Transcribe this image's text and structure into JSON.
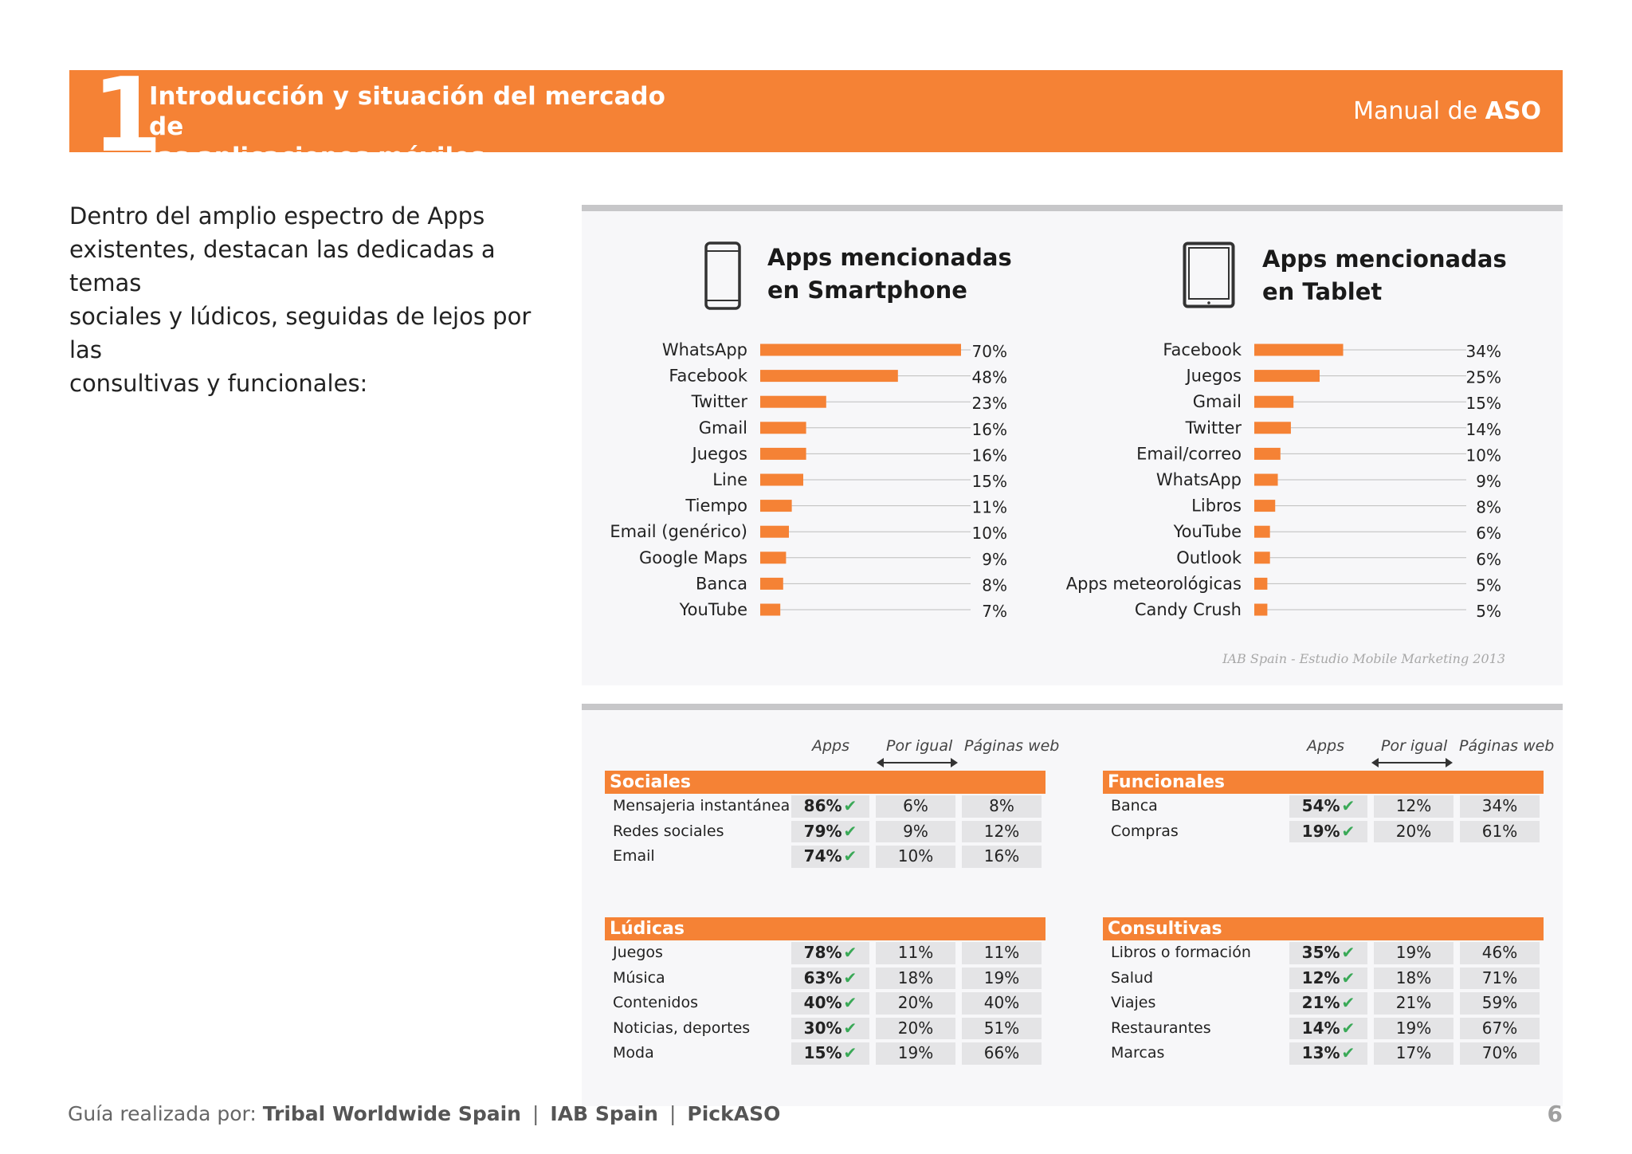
{
  "header": {
    "chapter_number": "1",
    "title_line1": "Introducción y situación del mercado de",
    "title_line2": "las aplicaciones móviles",
    "manual_prefix": "Manual de ",
    "manual_bold": "ASO"
  },
  "intro": {
    "line1": "Dentro del amplio espectro de Apps",
    "line2": "existentes, destacan las dedicadas a temas",
    "line3": "sociales y lúdicos, seguidas de lejos por las",
    "line4": "consultivas y funcionales:"
  },
  "chart_data": [
    {
      "type": "bar",
      "title": "Apps mencionadas en Smartphone",
      "title_line1": "Apps mencionadas",
      "title_line2": "en Smartphone",
      "categories": [
        "WhatsApp",
        "Facebook",
        "Twitter",
        "Gmail",
        "Juegos",
        "Line",
        "Tiempo",
        "Email (genérico)",
        "Google Maps",
        "Banca",
        "YouTube"
      ],
      "values": [
        70,
        48,
        23,
        16,
        16,
        15,
        11,
        10,
        9,
        8,
        7
      ],
      "value_labels": [
        "70%",
        "48%",
        "23%",
        "16%",
        "16%",
        "15%",
        "11%",
        "10%",
        "9%",
        "8%",
        "7%"
      ],
      "orientation": "horizontal",
      "unit": "%",
      "color": "#f58235"
    },
    {
      "type": "bar",
      "title": "Apps mencionadas en Tablet",
      "title_line1": "Apps mencionadas",
      "title_line2": "en Tablet",
      "categories": [
        "Facebook",
        "Juegos",
        "Gmail",
        "Twitter",
        "Email/correo",
        "WhatsApp",
        "Libros",
        "YouTube",
        "Outlook",
        "Apps meteorológicas",
        "Candy Crush"
      ],
      "values": [
        34,
        25,
        15,
        14,
        10,
        9,
        8,
        6,
        6,
        5,
        5
      ],
      "value_labels": [
        "34%",
        "25%",
        "15%",
        "14%",
        "10%",
        "9%",
        "8%",
        "6%",
        "6%",
        "5%",
        "5%"
      ],
      "orientation": "horizontal",
      "unit": "%",
      "color": "#f58235"
    }
  ],
  "source": "IAB Spain - Estudio Mobile Marketing 2013",
  "icons": {
    "smartphone": "smartphone-icon",
    "tablet": "tablet-icon",
    "check": "check-icon"
  },
  "table_columns": {
    "apps": "Apps",
    "por_igual": "Por igual",
    "paginas_web": "Páginas web"
  },
  "tables": {
    "sociales": {
      "title": "Sociales",
      "rows": [
        {
          "label": "Mensajeria instantánea",
          "apps": "86%",
          "igual": "6%",
          "web": "8%"
        },
        {
          "label": "Redes sociales",
          "apps": "79%",
          "igual": "9%",
          "web": "12%"
        },
        {
          "label": "Email",
          "apps": "74%",
          "igual": "10%",
          "web": "16%"
        }
      ]
    },
    "funcionales": {
      "title": "Funcionales",
      "rows": [
        {
          "label": "Banca",
          "apps": "54%",
          "igual": "12%",
          "web": "34%"
        },
        {
          "label": "Compras",
          "apps": "19%",
          "igual": "20%",
          "web": "61%"
        }
      ]
    },
    "ludicas": {
      "title": "Lúdicas",
      "rows": [
        {
          "label": "Juegos",
          "apps": "78%",
          "igual": "11%",
          "web": "11%"
        },
        {
          "label": "Música",
          "apps": "63%",
          "igual": "18%",
          "web": "19%"
        },
        {
          "label": "Contenidos",
          "apps": "40%",
          "igual": "20%",
          "web": "40%"
        },
        {
          "label": "Noticias, deportes",
          "apps": "30%",
          "igual": "20%",
          "web": "51%"
        },
        {
          "label": "Moda",
          "apps": "15%",
          "igual": "19%",
          "web": "66%"
        }
      ]
    },
    "consultivas": {
      "title": "Consultivas",
      "rows": [
        {
          "label": "Libros o formación",
          "apps": "35%",
          "igual": "19%",
          "web": "46%"
        },
        {
          "label": "Salud",
          "apps": "12%",
          "igual": "18%",
          "web": "71%"
        },
        {
          "label": "Viajes",
          "apps": "21%",
          "igual": "21%",
          "web": "59%"
        },
        {
          "label": "Restaurantes",
          "apps": "14%",
          "igual": "19%",
          "web": "67%"
        },
        {
          "label": "Marcas",
          "apps": "13%",
          "igual": "17%",
          "web": "70%"
        }
      ]
    }
  },
  "footer": {
    "prefix": "Guía realizada por: ",
    "org1": "Tribal Worldwide Spain",
    "sep": "|",
    "org2": "IAB Spain",
    "org3": "PickASO",
    "page": "6"
  }
}
